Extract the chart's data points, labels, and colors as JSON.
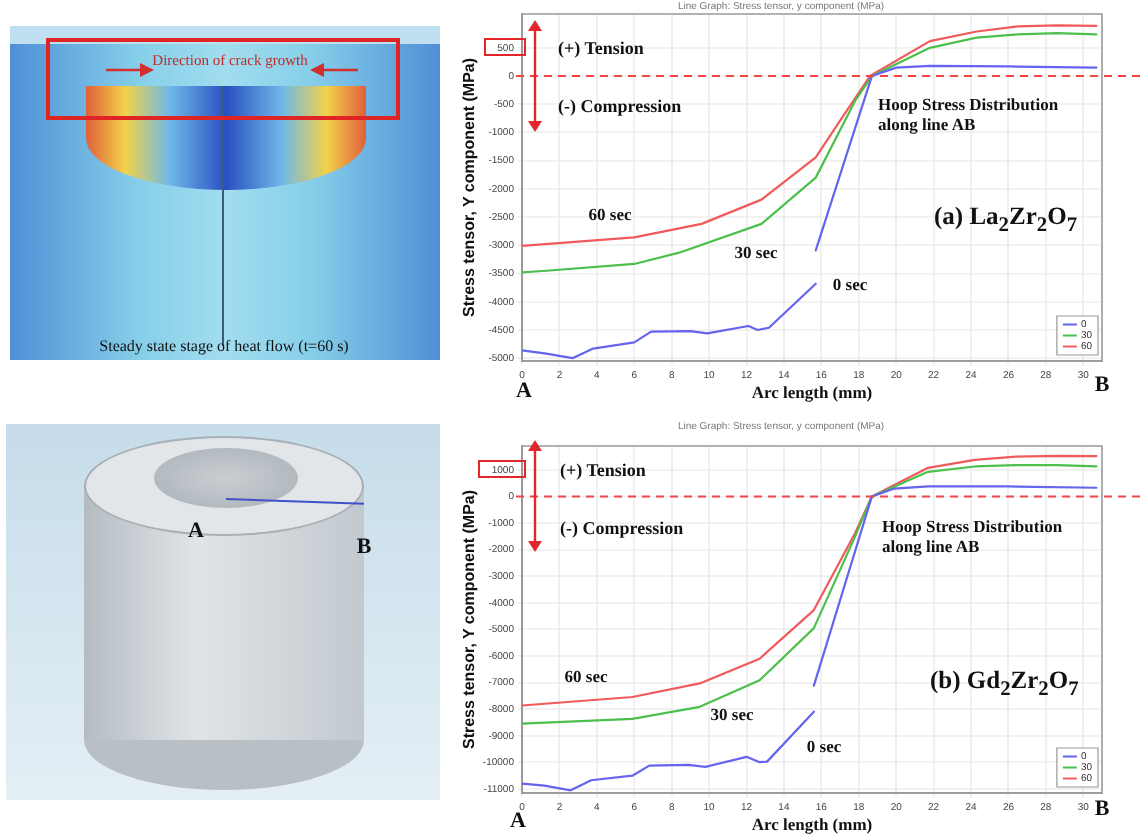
{
  "chart_data": [
    {
      "type": "other",
      "annotations": [
        "Direction of crack growth",
        "Steady state stage of heat flow (t=60 s)"
      ]
    },
    {
      "type": "line",
      "title": "Line Graph: Stress tensor, y component (MPa)",
      "xlabel": "Arc length (mm)",
      "ylabel": "Stress tensor, Y component (MPa)",
      "xlim": [
        0,
        31
      ],
      "xticks": [
        0,
        2,
        4,
        6,
        8,
        10,
        12,
        14,
        16,
        18,
        20,
        22,
        24,
        26,
        28,
        30
      ],
      "ylim": [
        -5050,
        1100
      ],
      "yticks": [
        -5000,
        -4500,
        -4000,
        -3500,
        -3000,
        -2500,
        -2000,
        -1500,
        -1000,
        -500,
        0,
        500
      ],
      "grid": true,
      "legend": "bottom right",
      "series": [
        {
          "name": "0",
          "color": "#6464f0",
          "x": [
            0,
            1.3,
            2.7,
            3.8,
            6.0,
            6.9,
            9.0,
            9.9,
            12.1,
            12.6,
            13.2,
            15.7,
            null,
            15.7,
            18.7,
            20.0,
            21.8,
            26.0,
            30.7
          ],
          "values": [
            -4860,
            -4920,
            -5000,
            -4830,
            -4720,
            -4530,
            -4520,
            -4560,
            -4430,
            -4500,
            -4460,
            -3680,
            null,
            -3090,
            0,
            150,
            180,
            170,
            150
          ]
        },
        {
          "name": "30",
          "color": "#4cbf4c",
          "x": [
            0,
            1.3,
            6.0,
            8.4,
            12.8,
            15.7,
            17.8,
            18.7,
            21.8,
            24.3,
            26.5,
            28.6,
            30.7
          ],
          "values": [
            -3480,
            -3450,
            -3330,
            -3130,
            -2620,
            -1800,
            -440,
            0,
            500,
            680,
            740,
            760,
            740
          ]
        },
        {
          "name": "60",
          "color": "#f05a5a",
          "x": [
            0,
            6.0,
            9.6,
            12.8,
            15.7,
            17.1,
            18.6,
            21.8,
            24.3,
            26.5,
            28.6,
            30.7
          ],
          "values": [
            -3010,
            -2860,
            -2620,
            -2190,
            -1440,
            -740,
            0,
            620,
            790,
            880,
            900,
            890
          ]
        }
      ],
      "ref_lines": [
        {
          "axis": "y",
          "value": 0,
          "color": "#f04646",
          "line_style": "dashed"
        }
      ],
      "annotations": [
        "(+) Tension",
        "(-) Compression",
        "Hoop Stress Distribution along line AB",
        "(a) La$_{2}$Zr$_{2}$O$_{7}$",
        "60 sec",
        "30 sec",
        "0 sec",
        "A",
        "B"
      ]
    },
    {
      "type": "other",
      "annotations": [
        "A",
        "B"
      ]
    },
    {
      "type": "line",
      "title": "Line Graph: Stress tensor, y component (MPa)",
      "xlabel": "Arc length (mm)",
      "ylabel": "Stress tensor, Y component (MPa)",
      "xlim": [
        0,
        31
      ],
      "xticks": [
        0,
        2,
        4,
        6,
        8,
        10,
        12,
        14,
        16,
        18,
        20,
        22,
        24,
        26,
        28,
        30
      ],
      "ylim": [
        -11150,
        1900
      ],
      "yticks": [
        -11000,
        -10000,
        -9000,
        -8000,
        -7000,
        -6000,
        -5000,
        -4000,
        -3000,
        -2000,
        -1000,
        0,
        1000
      ],
      "grid": true,
      "legend": "bottom right",
      "series": [
        {
          "name": "0",
          "color": "#6464f0",
          "x": [
            0,
            1.2,
            2.6,
            3.7,
            5.9,
            6.8,
            8.9,
            9.8,
            12.0,
            12.7,
            13.1,
            15.6,
            null,
            15.6,
            18.7,
            19.9,
            21.7,
            26.0,
            30.7
          ],
          "values": [
            -10800,
            -10870,
            -11050,
            -10670,
            -10500,
            -10120,
            -10090,
            -10170,
            -9790,
            -9990,
            -9970,
            -8090,
            null,
            -7110,
            0,
            300,
            380,
            380,
            330
          ]
        },
        {
          "name": "30",
          "color": "#4cbf4c",
          "x": [
            0,
            5.9,
            9.5,
            12.7,
            15.6,
            17.8,
            18.7,
            21.7,
            24.2,
            26.4,
            28.6,
            30.7
          ],
          "values": [
            -8540,
            -8360,
            -7910,
            -6910,
            -4950,
            -1510,
            0,
            930,
            1130,
            1180,
            1180,
            1130
          ]
        },
        {
          "name": "60",
          "color": "#f05a5a",
          "x": [
            0,
            5.9,
            9.5,
            12.7,
            15.6,
            17.8,
            18.7,
            21.7,
            24.2,
            26.4,
            28.6,
            30.7
          ],
          "values": [
            -7860,
            -7540,
            -7030,
            -6100,
            -4270,
            -1380,
            0,
            1080,
            1380,
            1500,
            1530,
            1520
          ]
        }
      ],
      "ref_lines": [
        {
          "axis": "y",
          "value": 0,
          "color": "#f04646",
          "line_style": "dashed"
        }
      ],
      "annotations": [
        "(+) Tension",
        "(-) Compression",
        "Hoop Stress Distribution along line AB",
        "(b) Gd$_{2}$Zr$_{2}$O$_{7}$",
        "60 sec",
        "30 sec",
        "0 sec",
        "A",
        "B"
      ]
    }
  ]
}
